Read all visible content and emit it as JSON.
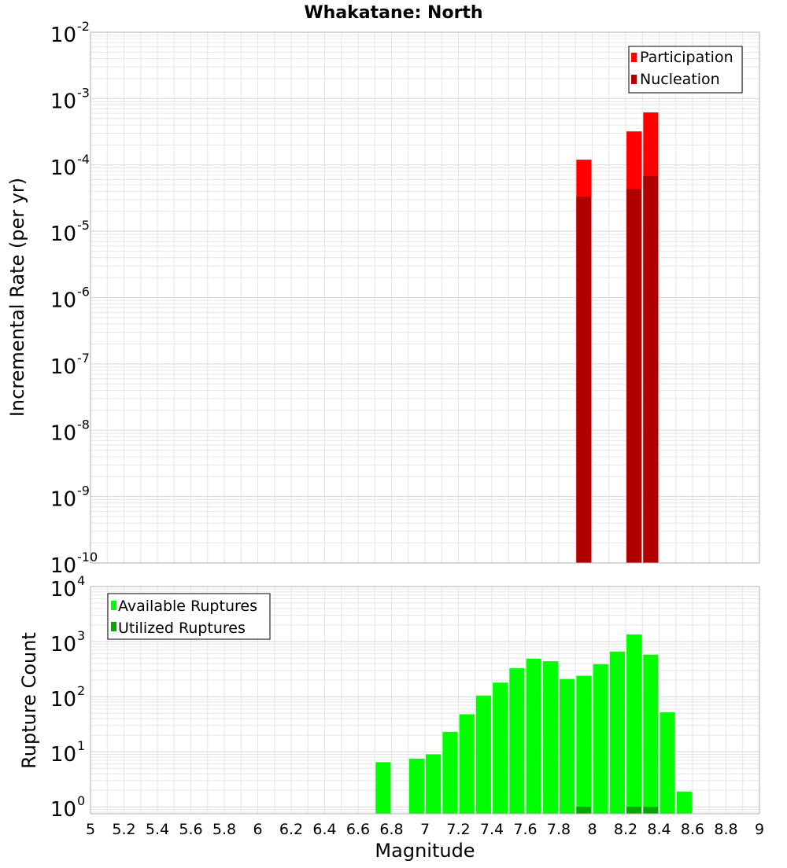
{
  "title": "Whakatane: North",
  "xlabel": "Magnitude",
  "x_ticks": [
    "5",
    "5.2",
    "5.4",
    "5.6",
    "5.8",
    "6",
    "6.2",
    "6.4",
    "6.6",
    "6.8",
    "7",
    "7.2",
    "7.4",
    "7.6",
    "7.8",
    "8",
    "8.2",
    "8.4",
    "8.6",
    "8.8",
    "9"
  ],
  "colors": {
    "participation": "#ff0000",
    "nucleation": "#b00000",
    "available": "#00ff00",
    "utilized": "#00a800",
    "grid": "#e6e6e6",
    "frame": "#b0b0b0"
  },
  "chart_data": [
    {
      "type": "bar",
      "title": "Whakatane: North",
      "xlabel": "Magnitude",
      "ylabel": "Incremental Rate (per yr)",
      "y_scale": "log",
      "xlim": [
        5,
        9
      ],
      "ylim": [
        1e-10,
        0.01
      ],
      "y_tick_exponents": [
        "-10",
        "-9",
        "-8",
        "-7",
        "-6",
        "-5",
        "-4",
        "-3",
        "-2"
      ],
      "legend": [
        "Participation",
        "Nucleation"
      ],
      "legend_position": "top-right",
      "grid": true,
      "series": [
        {
          "name": "Participation",
          "x": [
            7.95,
            8.25,
            8.35
          ],
          "values": [
            0.00012,
            0.00032,
            0.00062
          ]
        },
        {
          "name": "Nucleation",
          "x": [
            7.95,
            8.25,
            8.35
          ],
          "values": [
            3.3e-05,
            4.3e-05,
            6.8e-05
          ]
        }
      ]
    },
    {
      "type": "bar",
      "xlabel": "Magnitude",
      "ylabel": "Rupture Count",
      "y_scale": "log",
      "xlim": [
        5,
        9
      ],
      "ylim": [
        0.75,
        10000
      ],
      "y_tick_exponents": [
        "0",
        "1",
        "2",
        "3",
        "4"
      ],
      "legend": [
        "Available Ruptures",
        "Utilized Ruptures"
      ],
      "legend_position": "top-left",
      "grid": true,
      "series": [
        {
          "name": "Available Ruptures",
          "x": [
            6.75,
            6.95,
            7.05,
            7.15,
            7.25,
            7.35,
            7.45,
            7.55,
            7.65,
            7.75,
            7.85,
            7.95,
            8.05,
            8.15,
            8.25,
            8.35,
            8.45,
            8.55
          ],
          "values": [
            6.5,
            7.5,
            9,
            23,
            48,
            105,
            180,
            330,
            490,
            440,
            210,
            240,
            390,
            660,
            1350,
            580,
            52,
            1.9
          ]
        },
        {
          "name": "Utilized Ruptures",
          "x": [
            7.95,
            8.25,
            8.35
          ],
          "values": [
            1,
            1,
            1
          ]
        }
      ]
    }
  ]
}
